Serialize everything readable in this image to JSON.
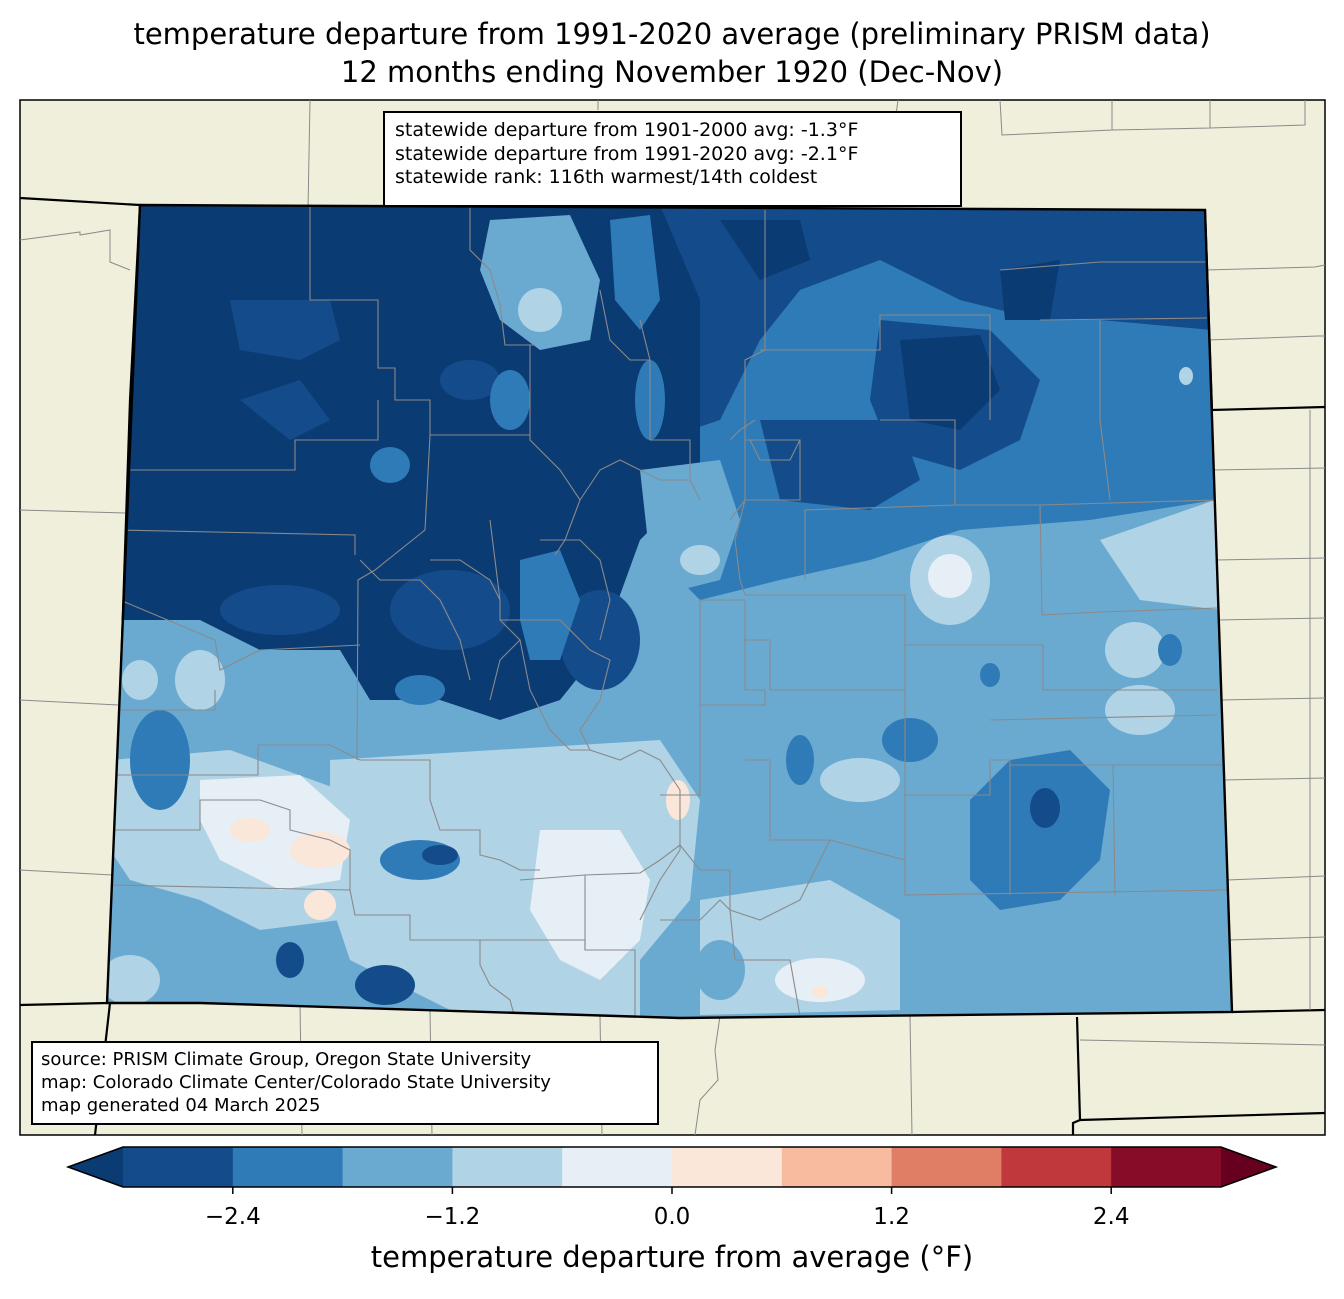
{
  "title": {
    "line1": "temperature departure from 1991-2020 average (preliminary PRISM data)",
    "line2": "12 months ending November 1920 (Dec-Nov)"
  },
  "stats": {
    "line1": "statewide departure from 1901-2000 avg: -1.3°F",
    "line2": "statewide departure from 1991-2020 avg: -2.1°F",
    "line3": "statewide rank: 116th warmest/14th coldest"
  },
  "source": {
    "line1": "source: PRISM Climate Group, Oregon State University",
    "line2": "map: Colorado Climate Center/Colorado State University",
    "line3": "map generated 04 March 2025"
  },
  "colorbar": {
    "label": "temperature departure from average (°F)",
    "min": -3.0,
    "max": 3.0,
    "step": 0.6,
    "colors": [
      "#0b3b73",
      "#144c8b",
      "#2f7bb8",
      "#6aaad0",
      "#b0d3e6",
      "#e6eff5",
      "#fbe6da",
      "#f8bba0",
      "#e07e65",
      "#c0383c",
      "#870c28",
      "#67001f"
    ],
    "ticks": [
      {
        "value": -2.4,
        "label": "−2.4"
      },
      {
        "value": -1.2,
        "label": "−1.2"
      },
      {
        "value": 0.0,
        "label": "0.0"
      },
      {
        "value": 1.2,
        "label": "1.2"
      },
      {
        "value": 2.4,
        "label": "2.4"
      }
    ]
  },
  "map": {
    "land_color": "#efefdc",
    "border_color": "#000000",
    "county_color": "#888888"
  }
}
